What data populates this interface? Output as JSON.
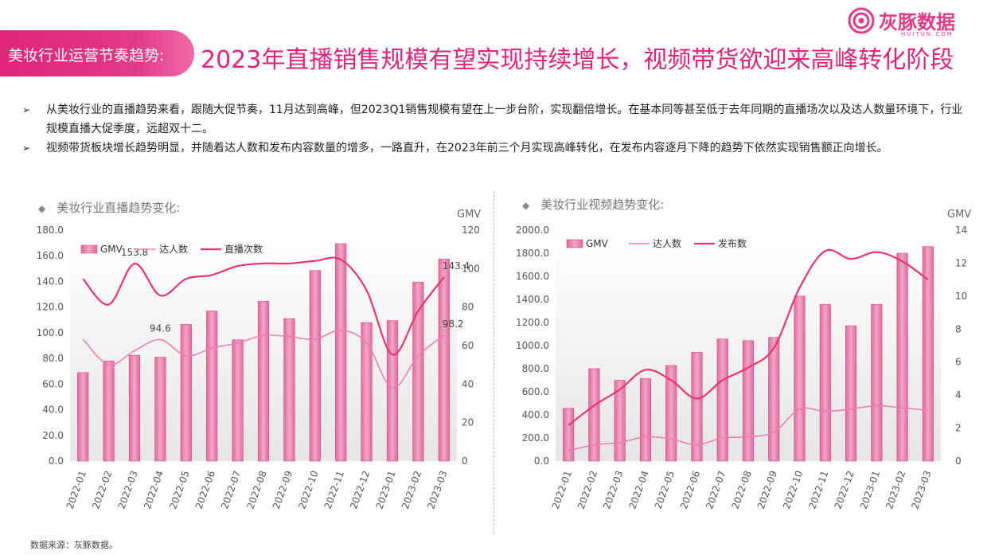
{
  "header": {
    "tag_label": "美妆行业运营节奏趋势:",
    "title": "2023年直播销售规模有望实现持续增长，视频带货欲迎来高峰转化阶段"
  },
  "logo": {
    "text": "灰豚数据",
    "sub": "HUITUN.COM"
  },
  "bullets": [
    "从美妆行业的直播趋势来看，跟随大促节奏，11月达到高峰，但2023Q1销售规模有望在上一步台阶，实现翻倍增长。在基本同等甚至低于去年同期的直播场次以及达人数量环境下，行业规模直播大促季度，远超双十二。",
    "视频带货板块增长趋势明显，并随着达人数和发布内容数量的增多，一路直升，在2023年前三个月实现高峰转化，在发布内容逐月下降的趋势下依然实现销售额正向增长。"
  ],
  "bullet_marker": "➢",
  "source": "数据来源：灰豚数据。",
  "colors": {
    "brand": "#e0247c",
    "gmv_bar": "#e87aa8",
    "talent_line": "#ee7fb5",
    "count_line": "#e8356f"
  },
  "chart_data": [
    {
      "type": "bar",
      "title": "美妆行业直播趋势变化:",
      "categories": [
        "2022-01",
        "2022-02",
        "2022-03",
        "2022-04",
        "2022-05",
        "2022-06",
        "2022-07",
        "2022-08",
        "2022-09",
        "2022-10",
        "2022-11",
        "2022-12",
        "2023-01",
        "2023-02",
        "2023-03"
      ],
      "ylim": [
        0,
        180
      ],
      "yticks": [
        "0.0",
        "20.0",
        "40.0",
        "60.0",
        "80.0",
        "100.0",
        "120.0",
        "140.0",
        "160.0",
        "180.0"
      ],
      "y2label": "GMV",
      "y2lim": [
        0,
        120
      ],
      "y2ticks": [
        "0",
        "20",
        "40",
        "60",
        "80",
        "100",
        "120"
      ],
      "legend_position": "top-left",
      "series": [
        {
          "name": "GMV",
          "type": "bar",
          "axis": "right",
          "values": [
            46,
            52,
            55,
            54,
            71,
            78,
            63,
            83,
            74,
            99,
            113,
            72,
            73,
            93,
            105
          ]
        },
        {
          "name": "达人数",
          "type": "line",
          "axis": "left",
          "values": [
            95,
            75,
            86,
            94.6,
            82,
            88,
            92,
            98,
            97,
            95,
            102,
            92,
            57,
            82,
            98.2
          ]
        },
        {
          "name": "直播次数",
          "type": "line",
          "axis": "left",
          "values": [
            142,
            122,
            153.8,
            129,
            142,
            145,
            152,
            154,
            154,
            156,
            157,
            133,
            83,
            117,
            143.4
          ]
        }
      ],
      "annotations": [
        {
          "series": "直播次数",
          "index": 2,
          "text": "153.8"
        },
        {
          "series": "达人数",
          "index": 3,
          "text": "94.6"
        },
        {
          "series": "直播次数",
          "index": 14,
          "text": "143.4"
        },
        {
          "series": "达人数",
          "index": 14,
          "text": "98.2"
        }
      ]
    },
    {
      "type": "bar",
      "title": "美妆行业视频趋势变化:",
      "categories": [
        "2022-01",
        "2022-02",
        "2022-03",
        "2022-04",
        "2022-05",
        "2022-06",
        "2022-07",
        "2022-08",
        "2022-09",
        "2022-10",
        "2022-11",
        "2022-12",
        "2023-01",
        "2023-02",
        "2023-03"
      ],
      "ylim": [
        0,
        2000
      ],
      "yticks": [
        "0.0",
        "200.0",
        "400.0",
        "600.0",
        "800.0",
        "1000.0",
        "1200.0",
        "1400.0",
        "1600.0",
        "1800.0",
        "2000.0"
      ],
      "y2label": "GMV",
      "y2lim": [
        0,
        14
      ],
      "y2ticks": [
        "0",
        "2",
        "4",
        "6",
        "8",
        "10",
        "12",
        "14"
      ],
      "legend_position": "top-left",
      "series": [
        {
          "name": "GMV",
          "type": "bar",
          "axis": "right",
          "values": [
            3.2,
            5.6,
            4.9,
            5.0,
            5.8,
            6.6,
            7.4,
            7.3,
            7.5,
            10.0,
            9.5,
            8.2,
            9.5,
            12.6,
            13.0
          ]
        },
        {
          "name": "达人数",
          "type": "line",
          "axis": "left",
          "values": [
            90,
            140,
            160,
            210,
            190,
            140,
            200,
            210,
            250,
            450,
            430,
            450,
            480,
            460,
            440
          ]
        },
        {
          "name": "发布数",
          "type": "line",
          "axis": "left",
          "values": [
            310,
            480,
            620,
            790,
            700,
            540,
            700,
            810,
            980,
            1500,
            1820,
            1750,
            1810,
            1730,
            1570
          ]
        }
      ]
    }
  ]
}
